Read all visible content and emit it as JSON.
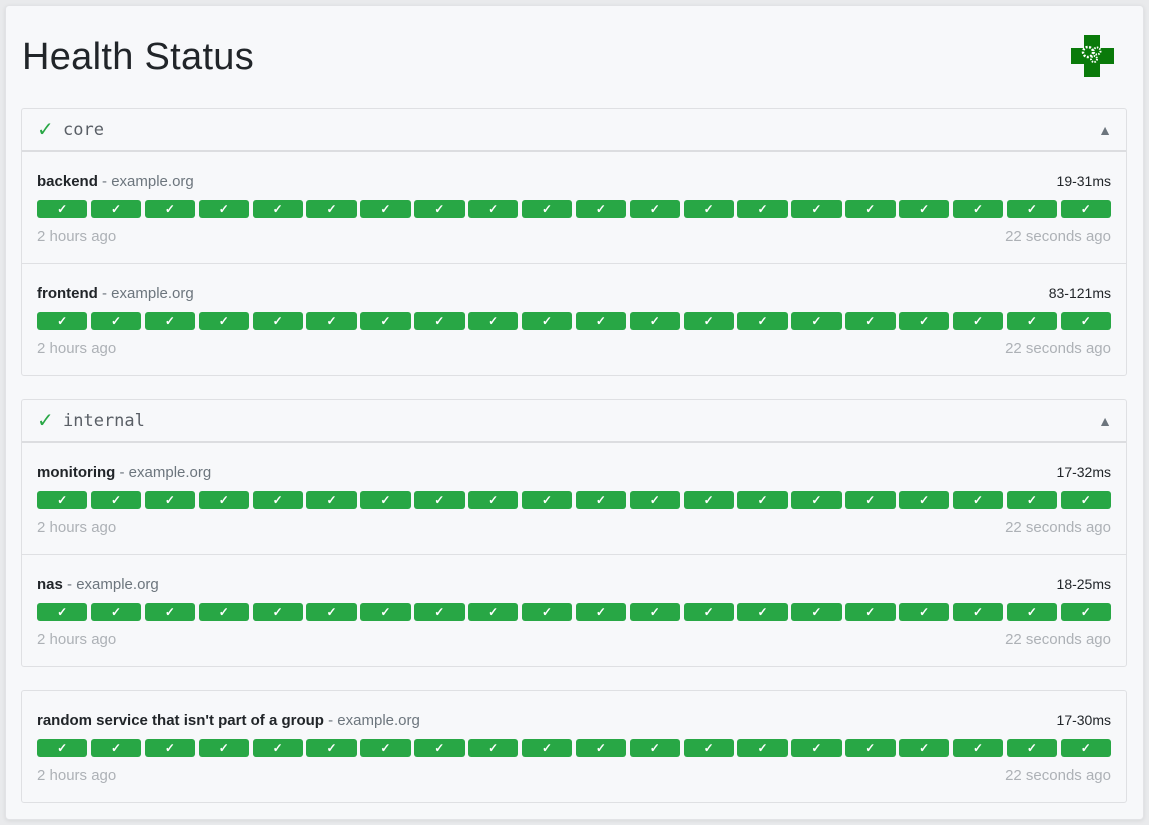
{
  "header": {
    "title": "Health Status",
    "logo_icon": "health-cross-gears-logo"
  },
  "colors": {
    "success": "#28a745",
    "logo": "#0a7a0a"
  },
  "groups": [
    {
      "name": "core",
      "status_icon": "✓",
      "toggle_icon": "▲",
      "services": [
        {
          "name": "backend",
          "host": "example.org",
          "response_range": "19-31ms",
          "oldest": "2 hours ago",
          "newest": "22 seconds ago",
          "results": [
            "success",
            "success",
            "success",
            "success",
            "success",
            "success",
            "success",
            "success",
            "success",
            "success",
            "success",
            "success",
            "success",
            "success",
            "success",
            "success",
            "success",
            "success",
            "success",
            "success"
          ]
        },
        {
          "name": "frontend",
          "host": "example.org",
          "response_range": "83-121ms",
          "oldest": "2 hours ago",
          "newest": "22 seconds ago",
          "results": [
            "success",
            "success",
            "success",
            "success",
            "success",
            "success",
            "success",
            "success",
            "success",
            "success",
            "success",
            "success",
            "success",
            "success",
            "success",
            "success",
            "success",
            "success",
            "success",
            "success"
          ]
        }
      ]
    },
    {
      "name": "internal",
      "status_icon": "✓",
      "toggle_icon": "▲",
      "services": [
        {
          "name": "monitoring",
          "host": "example.org",
          "response_range": "17-32ms",
          "oldest": "2 hours ago",
          "newest": "22 seconds ago",
          "results": [
            "success",
            "success",
            "success",
            "success",
            "success",
            "success",
            "success",
            "success",
            "success",
            "success",
            "success",
            "success",
            "success",
            "success",
            "success",
            "success",
            "success",
            "success",
            "success",
            "success"
          ]
        },
        {
          "name": "nas",
          "host": "example.org",
          "response_range": "18-25ms",
          "oldest": "2 hours ago",
          "newest": "22 seconds ago",
          "results": [
            "success",
            "success",
            "success",
            "success",
            "success",
            "success",
            "success",
            "success",
            "success",
            "success",
            "success",
            "success",
            "success",
            "success",
            "success",
            "success",
            "success",
            "success",
            "success",
            "success"
          ]
        }
      ]
    }
  ],
  "ungrouped": [
    {
      "name": "random service that isn't part of a group",
      "host": "example.org",
      "response_range": "17-30ms",
      "oldest": "2 hours ago",
      "newest": "22 seconds ago",
      "results": [
        "success",
        "success",
        "success",
        "success",
        "success",
        "success",
        "success",
        "success",
        "success",
        "success",
        "success",
        "success",
        "success",
        "success",
        "success",
        "success",
        "success",
        "success",
        "success",
        "success"
      ]
    }
  ],
  "bar_mark": "✓"
}
